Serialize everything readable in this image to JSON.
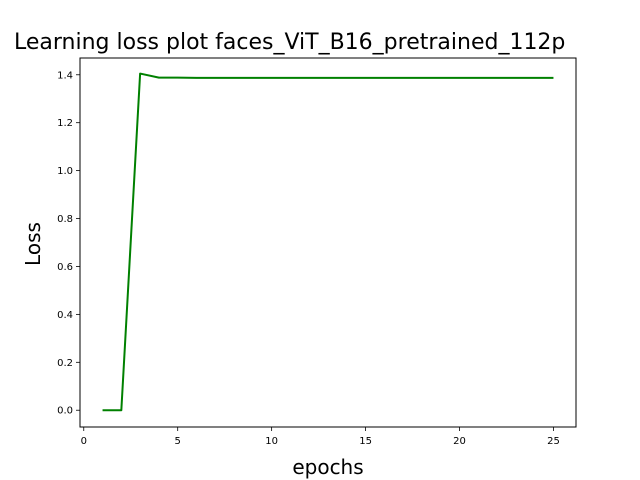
{
  "chart_data": {
    "type": "line",
    "title": "Learning loss plot faces_ViT_B16_pretrained_112p",
    "xlabel": "epochs",
    "ylabel": "Loss",
    "xlim": [
      -0.2,
      26.2
    ],
    "ylim": [
      -0.07,
      1.47
    ],
    "xticks": [
      0,
      5,
      10,
      15,
      20,
      25
    ],
    "yticks": [
      0.0,
      0.2,
      0.4,
      0.6,
      0.8,
      1.0,
      1.2,
      1.4
    ],
    "xtick_labels": [
      "0",
      "5",
      "10",
      "15",
      "20",
      "25"
    ],
    "ytick_labels": [
      "0.0",
      "0.2",
      "0.4",
      "0.6",
      "0.8",
      "1.0",
      "1.2",
      "1.4"
    ],
    "grid": false,
    "series": [
      {
        "color": "#008000",
        "x": [
          1,
          2,
          3,
          4,
          5,
          6,
          7,
          8,
          9,
          10,
          11,
          12,
          13,
          14,
          15,
          16,
          17,
          18,
          19,
          20,
          21,
          22,
          23,
          24,
          25
        ],
        "y": [
          0.0,
          0.0,
          1.405,
          1.388,
          1.388,
          1.387,
          1.387,
          1.387,
          1.387,
          1.387,
          1.387,
          1.387,
          1.387,
          1.387,
          1.387,
          1.387,
          1.387,
          1.387,
          1.387,
          1.387,
          1.387,
          1.387,
          1.387,
          1.387,
          1.387
        ]
      }
    ]
  }
}
